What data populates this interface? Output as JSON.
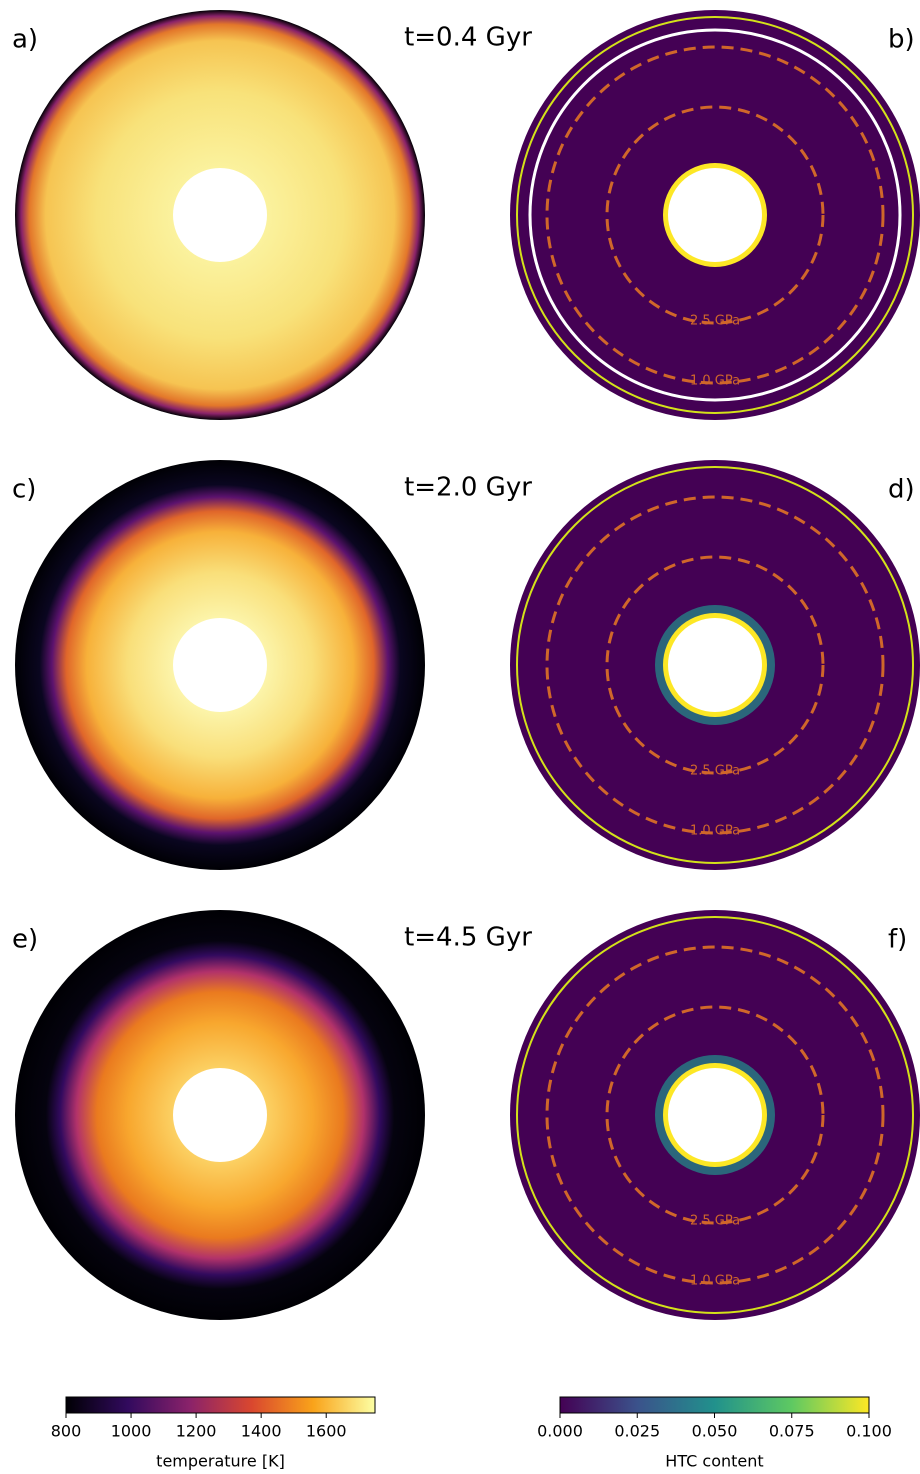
{
  "panels": [
    {
      "label": "a)"
    },
    {
      "label": "b)"
    },
    {
      "label": "c)"
    },
    {
      "label": "d)"
    },
    {
      "label": "e)"
    },
    {
      "label": "f)"
    }
  ],
  "times": [
    "t=0.4 Gyr",
    "t=2.0 Gyr",
    "t=4.5 Gyr"
  ],
  "pressure_labels": [
    "2.5 GPa",
    "1.0 GPa"
  ],
  "colorbars": [
    {
      "label": "temperature [K]",
      "lim": [
        800,
        1750
      ],
      "ticks": [
        800,
        1000,
        1200,
        1400,
        1600
      ]
    },
    {
      "label": "HTC content",
      "lim": [
        0,
        0.1
      ],
      "ticks": [
        {
          "value": 0,
          "label": "0.000"
        },
        {
          "value": 0.025,
          "label": "0.025"
        },
        {
          "value": 0.05,
          "label": "0.050"
        },
        {
          "value": 0.075,
          "label": "0.075"
        },
        {
          "value": 0.1,
          "label": "0.100"
        }
      ]
    }
  ]
}
